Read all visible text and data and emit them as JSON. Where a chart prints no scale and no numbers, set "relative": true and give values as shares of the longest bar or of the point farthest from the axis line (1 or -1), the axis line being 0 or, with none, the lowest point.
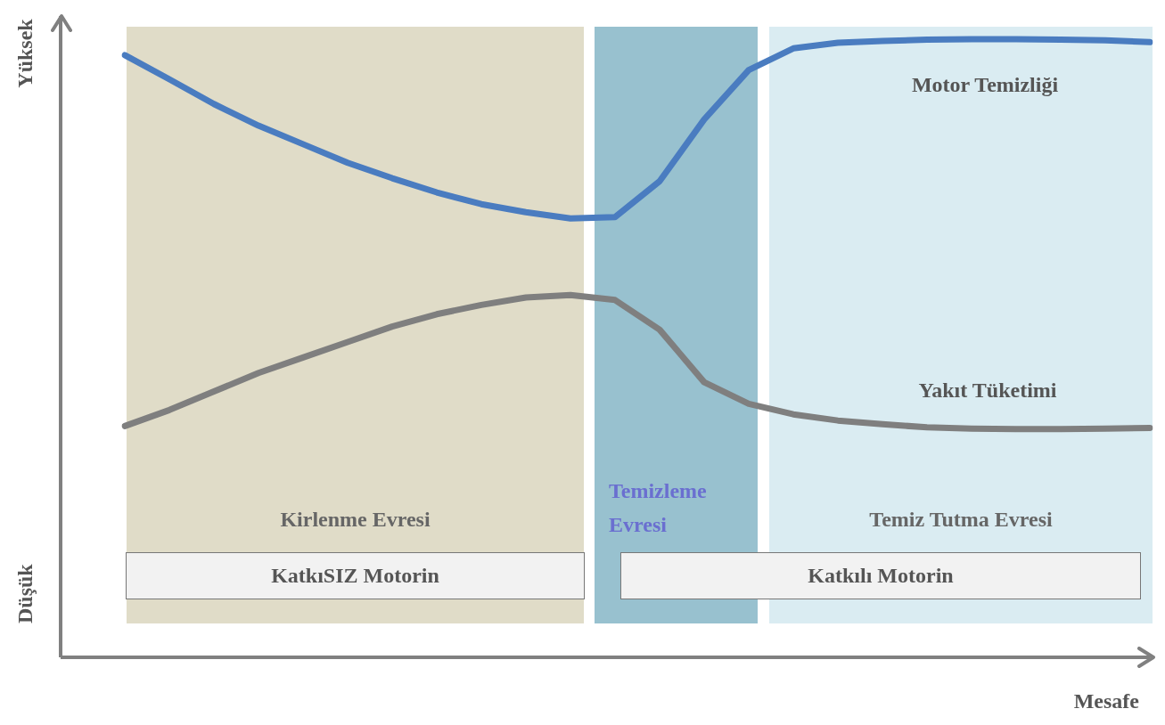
{
  "chart_data": {
    "type": "line",
    "relative": true,
    "tick_labels": false,
    "legend": false,
    "xlabel": "Mesafe",
    "categories": [
      null,
      null,
      null,
      null,
      null,
      null,
      null,
      null,
      null,
      null,
      null,
      null,
      null,
      null,
      null,
      null,
      null,
      null,
      null,
      null,
      null,
      null,
      null,
      null
    ],
    "series": [
      {
        "name": "Motor Temizliği",
        "color": "#4a7cc0",
        "values": [
          0.974,
          0.935,
          0.895,
          0.86,
          0.83,
          0.8,
          0.775,
          0.752,
          0.733,
          0.72,
          0.71,
          0.712,
          0.77,
          0.87,
          0.95,
          0.985,
          0.994,
          0.997,
          0.999,
          1,
          1,
          0.999,
          0.998,
          0.995
        ]
      },
      {
        "name": "Yakıt Tüketimi",
        "color": "#7f7f7f",
        "values": [
          0.374,
          0.4,
          0.43,
          0.46,
          0.485,
          0.51,
          0.535,
          0.555,
          0.57,
          0.582,
          0.586,
          0.578,
          0.53,
          0.445,
          0.41,
          0.393,
          0.383,
          0.377,
          0.372,
          0.37,
          0.369,
          0.369,
          0.37,
          0.371
        ]
      }
    ],
    "annotations": [
      "Yüksek",
      "Düşük",
      "Kirlenme Evresi",
      "Temizleme Evresi",
      "Temiz Tutma Evresi",
      "KatkıSIZ Motorin",
      "Katkılı Motorin"
    ]
  }
}
